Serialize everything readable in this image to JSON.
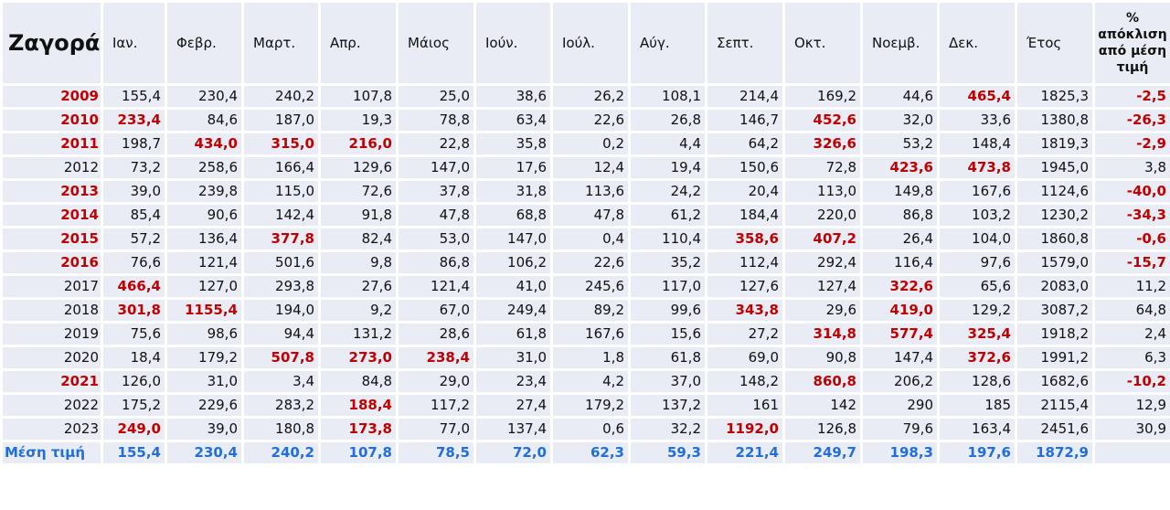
{
  "colors": {
    "background": "#e9ebf5",
    "highlight_red": "#c00000",
    "mean_blue": "#1f6fe0"
  },
  "header": {
    "title": "Ζαγορά",
    "months": [
      "Ιαν.",
      "Φεβρ.",
      "Μαρτ.",
      "Απρ.",
      "Μάιος",
      "Ιούν.",
      "Ιούλ.",
      "Αύγ.",
      "Σεπτ.",
      "Οκτ.",
      "Νοεμβ.",
      "Δεκ."
    ],
    "annual": "Έτος",
    "pct": "% απόκλιση από μέση τιμή"
  },
  "rows": [
    {
      "year": "2009",
      "year_red": true,
      "values": [
        "155,4",
        "230,4",
        "240,2",
        "107,8",
        "25,0",
        "38,6",
        "26,2",
        "108,1",
        "214,4",
        "169,2",
        "44,6",
        "465,4"
      ],
      "annual": "1825,3",
      "pct": "-2,5",
      "red": [
        11
      ]
    },
    {
      "year": "2010",
      "year_red": true,
      "values": [
        "233,4",
        "84,6",
        "187,0",
        "19,3",
        "78,8",
        "63,4",
        "22,6",
        "26,8",
        "146,7",
        "452,6",
        "32,0",
        "33,6"
      ],
      "annual": "1380,8",
      "pct": "-26,3",
      "red": [
        0,
        9
      ]
    },
    {
      "year": "2011",
      "year_red": true,
      "values": [
        "198,7",
        "434,0",
        "315,0",
        "216,0",
        "22,8",
        "35,8",
        "0,2",
        "4,4",
        "64,2",
        "326,6",
        "53,2",
        "148,4"
      ],
      "annual": "1819,3",
      "pct": "-2,9",
      "red": [
        1,
        2,
        3,
        9
      ]
    },
    {
      "year": "2012",
      "year_red": false,
      "values": [
        "73,2",
        "258,6",
        "166,4",
        "129,6",
        "147,0",
        "17,6",
        "12,4",
        "19,4",
        "150,6",
        "72,8",
        "423,6",
        "473,8"
      ],
      "annual": "1945,0",
      "pct": "3,8",
      "red": [
        10,
        11
      ]
    },
    {
      "year": "2013",
      "year_red": true,
      "values": [
        "39,0",
        "239,8",
        "115,0",
        "72,6",
        "37,8",
        "31,8",
        "113,6",
        "24,2",
        "20,4",
        "113,0",
        "149,8",
        "167,6"
      ],
      "annual": "1124,6",
      "pct": "-40,0",
      "red": []
    },
    {
      "year": "2014",
      "year_red": true,
      "values": [
        "85,4",
        "90,6",
        "142,4",
        "91,8",
        "47,8",
        "68,8",
        "47,8",
        "61,2",
        "184,4",
        "220,0",
        "86,8",
        "103,2"
      ],
      "annual": "1230,2",
      "pct": "-34,3",
      "red": []
    },
    {
      "year": "2015",
      "year_red": true,
      "values": [
        "57,2",
        "136,4",
        "377,8",
        "82,4",
        "53,0",
        "147,0",
        "0,4",
        "110,4",
        "358,6",
        "407,2",
        "26,4",
        "104,0"
      ],
      "annual": "1860,8",
      "pct": "-0,6",
      "red": [
        2,
        8,
        9
      ]
    },
    {
      "year": "2016",
      "year_red": true,
      "values": [
        "76,6",
        "121,4",
        "501,6",
        "9,8",
        "86,8",
        "106,2",
        "22,6",
        "35,2",
        "112,4",
        "292,4",
        "116,4",
        "97,6"
      ],
      "annual": "1579,0",
      "pct": "-15,7",
      "red": []
    },
    {
      "year": "2017",
      "year_red": false,
      "values": [
        "466,4",
        "127,0",
        "293,8",
        "27,6",
        "121,4",
        "41,0",
        "245,6",
        "117,0",
        "127,6",
        "127,4",
        "322,6",
        "65,6"
      ],
      "annual": "2083,0",
      "pct": "11,2",
      "red": [
        0,
        10
      ]
    },
    {
      "year": "2018",
      "year_red": false,
      "values": [
        "301,8",
        "1155,4",
        "194,0",
        "9,2",
        "67,0",
        "249,4",
        "89,2",
        "99,6",
        "343,8",
        "29,6",
        "419,0",
        "129,2"
      ],
      "annual": "3087,2",
      "pct": "64,8",
      "red": [
        0,
        1,
        8,
        10
      ]
    },
    {
      "year": "2019",
      "year_red": false,
      "values": [
        "75,6",
        "98,6",
        "94,4",
        "131,2",
        "28,6",
        "61,8",
        "167,6",
        "15,6",
        "27,2",
        "314,8",
        "577,4",
        "325,4"
      ],
      "annual": "1918,2",
      "pct": "2,4",
      "red": [
        9,
        10,
        11
      ]
    },
    {
      "year": "2020",
      "year_red": false,
      "values": [
        "18,4",
        "179,2",
        "507,8",
        "273,0",
        "238,4",
        "31,0",
        "1,8",
        "61,8",
        "69,0",
        "90,8",
        "147,4",
        "372,6"
      ],
      "annual": "1991,2",
      "pct": "6,3",
      "red": [
        2,
        3,
        4,
        11
      ]
    },
    {
      "year": "2021",
      "year_red": true,
      "values": [
        "126,0",
        "31,0",
        "3,4",
        "84,8",
        "29,0",
        "23,4",
        "4,2",
        "37,0",
        "148,2",
        "860,8",
        "206,2",
        "128,6"
      ],
      "annual": "1682,6",
      "pct": "-10,2",
      "red": [
        9
      ]
    },
    {
      "year": "2022",
      "year_red": false,
      "values": [
        "175,2",
        "229,6",
        "283,2",
        "188,4",
        "117,2",
        "27,4",
        "179,2",
        "137,2",
        "161",
        "142",
        "290",
        "185"
      ],
      "annual": "2115,4",
      "pct": "12,9",
      "red": [
        3
      ]
    },
    {
      "year": "2023",
      "year_red": false,
      "values": [
        "249,0",
        "39,0",
        "180,8",
        "173,8",
        "77,0",
        "137,4",
        "0,6",
        "32,2",
        "1192,0",
        "126,8",
        "79,6",
        "163,4"
      ],
      "annual": "2451,6",
      "pct": "30,9",
      "red": [
        0,
        3,
        8
      ]
    }
  ],
  "mean": {
    "label": "Μέση τιμή",
    "values": [
      "155,4",
      "230,4",
      "240,2",
      "107,8",
      "78,5",
      "72,0",
      "62,3",
      "59,3",
      "221,4",
      "249,7",
      "198,3",
      "197,6"
    ],
    "annual": "1872,9"
  }
}
